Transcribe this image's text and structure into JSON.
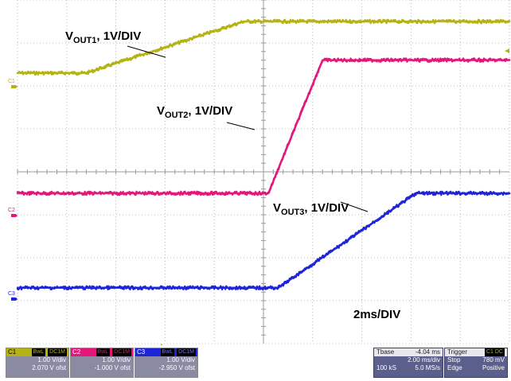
{
  "annotations": {
    "vout1": {
      "main": "V",
      "sub": "OUT1",
      "rest": ", 1V/DIV"
    },
    "vout2": {
      "main": "V",
      "sub": "OUT2",
      "rest": ", 1V/DIV"
    },
    "vout3": {
      "main": "V",
      "sub": "OUT3",
      "rest": ", 1V/DIV"
    },
    "timebase": "2ms/DIV"
  },
  "channel_markers": {
    "c1": "C1",
    "c2": "C2",
    "c3": "C3"
  },
  "channels": [
    {
      "id": "C1",
      "tag1": "BwL",
      "tag2": "DC1M",
      "scale": "1.00 V/div",
      "offset": "2.070 V ofst",
      "color": "#b5b214"
    },
    {
      "id": "C2",
      "tag1": "BwL",
      "tag2": "DC1M",
      "scale": "1.00 V/div",
      "offset": "-1.000 V ofst",
      "color": "#e4167a"
    },
    {
      "id": "C3",
      "tag1": "BwL",
      "tag2": "DC1M",
      "scale": "1.00 V/div",
      "offset": "-2.950 V ofst",
      "color": "#1d24d8"
    }
  ],
  "timebase_box": {
    "label": "Tbase",
    "delay": "-4.04 ms",
    "per_div": "2.00 ms/div",
    "samples": "100 kS",
    "rate": "5.0 MS/s"
  },
  "trigger_box": {
    "label": "Trigger",
    "source": "C1 DC",
    "mode": "Stop",
    "level": "780 mV",
    "type": "Edge",
    "slope": "Positive"
  },
  "chart_data": {
    "type": "line",
    "title": "",
    "xlabel": "",
    "ylabel": "",
    "x_divisions": 10,
    "y_divisions": 8,
    "series": [
      {
        "name": "VOUT1",
        "color": "#b5b214",
        "x": [
          0,
          1.4,
          4.6,
          10
        ],
        "y": [
          6.3,
          6.3,
          7.5,
          7.5
        ]
      },
      {
        "name": "VOUT2",
        "color": "#e4167a",
        "x": [
          0,
          5.1,
          6.2,
          10
        ],
        "y": [
          3.5,
          3.5,
          6.6,
          6.6
        ]
      },
      {
        "name": "VOUT3",
        "color": "#1d24d8",
        "x": [
          0,
          5.3,
          8.1,
          10
        ],
        "y": [
          1.3,
          1.3,
          3.5,
          3.5
        ]
      }
    ]
  }
}
